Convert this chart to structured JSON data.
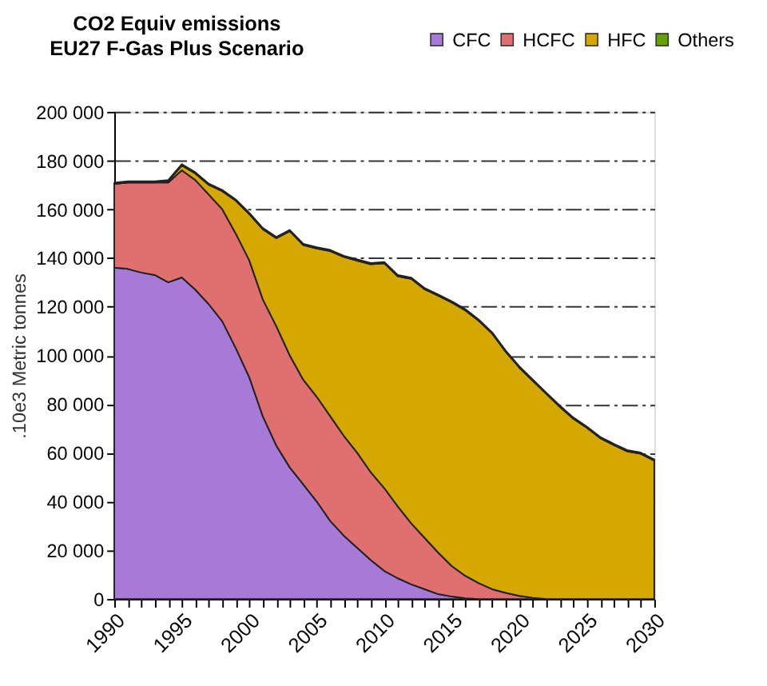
{
  "chart_data": {
    "type": "area",
    "stacked": true,
    "title": "CO2 Equiv emissions\nEU27 F-Gas Plus Scenario",
    "ylabel": ".10e3 Metric tonnes",
    "x": [
      1990,
      1991,
      1992,
      1993,
      1994,
      1995,
      1996,
      1997,
      1998,
      1999,
      2000,
      2001,
      2002,
      2003,
      2004,
      2005,
      2006,
      2007,
      2008,
      2009,
      2010,
      2011,
      2012,
      2013,
      2014,
      2015,
      2016,
      2017,
      2018,
      2019,
      2020,
      2021,
      2022,
      2023,
      2024,
      2025,
      2026,
      2027,
      2028,
      2029,
      2030
    ],
    "series": [
      {
        "name": "CFC",
        "color": "#a87ad8",
        "values": [
          136000,
          135500,
          134000,
          133000,
          130000,
          132000,
          127000,
          121000,
          114000,
          103000,
          91000,
          75000,
          63000,
          54000,
          47000,
          40000,
          32000,
          26000,
          21000,
          16000,
          11500,
          8500,
          6000,
          4000,
          2000,
          1000,
          300,
          0,
          0,
          0,
          0,
          0,
          0,
          0,
          0,
          0,
          0,
          0,
          0,
          0,
          0
        ]
      },
      {
        "name": "HCFC",
        "color": "#e07070",
        "values": [
          34400,
          35500,
          37000,
          38000,
          41000,
          44000,
          45000,
          45000,
          46000,
          47000,
          48000,
          48000,
          49000,
          46000,
          43000,
          43000,
          43000,
          41000,
          39000,
          36000,
          34000,
          29500,
          25000,
          21000,
          17000,
          12500,
          9200,
          6500,
          4000,
          2500,
          1300,
          500,
          0,
          0,
          0,
          0,
          0,
          0,
          0,
          0,
          0
        ]
      },
      {
        "name": "HFC",
        "color": "#d4a800",
        "values": [
          0,
          0,
          0,
          0,
          500,
          2000,
          2700,
          4000,
          7400,
          13500,
          19000,
          28800,
          36100,
          51000,
          55300,
          60900,
          67800,
          73400,
          78900,
          85400,
          92300,
          94500,
          100400,
          102100,
          105500,
          108200,
          109000,
          107700,
          104900,
          98900,
          93700,
          89100,
          84200,
          78900,
          74000,
          70300,
          66000,
          63200,
          60600,
          59600,
          56800
        ]
      },
      {
        "name": "Others",
        "color": "#66a000",
        "values": [
          500,
          500,
          500,
          500,
          500,
          500,
          500,
          500,
          500,
          500,
          500,
          500,
          500,
          500,
          500,
          500,
          500,
          500,
          500,
          500,
          500,
          500,
          500,
          500,
          500,
          500,
          500,
          500,
          500,
          500,
          500,
          500,
          500,
          500,
          500,
          500,
          500,
          500,
          500,
          500,
          500
        ]
      }
    ],
    "xlim": [
      1990,
      2030
    ],
    "xticks": [
      1990,
      {
        "value": 1991,
        "label": null
      },
      {
        "value": 1992,
        "label": null
      },
      {
        "value": 1993,
        "label": null
      },
      {
        "value": 1994,
        "label": null
      },
      1995,
      {
        "value": 1996,
        "label": null
      },
      {
        "value": 1997,
        "label": null
      },
      {
        "value": 1998,
        "label": null
      },
      {
        "value": 1999,
        "label": null
      },
      2000,
      {
        "value": 2001,
        "label": null
      },
      {
        "value": 2002,
        "label": null
      },
      {
        "value": 2003,
        "label": null
      },
      {
        "value": 2004,
        "label": null
      },
      2005,
      {
        "value": 2006,
        "label": null
      },
      {
        "value": 2007,
        "label": null
      },
      {
        "value": 2008,
        "label": null
      },
      {
        "value": 2009,
        "label": null
      },
      2010,
      {
        "value": 2011,
        "label": null
      },
      {
        "value": 2012,
        "label": null
      },
      {
        "value": 2013,
        "label": null
      },
      {
        "value": 2014,
        "label": null
      },
      2015,
      {
        "value": 2016,
        "label": null
      },
      {
        "value": 2017,
        "label": null
      },
      {
        "value": 2018,
        "label": null
      },
      {
        "value": 2019,
        "label": null
      },
      2020,
      {
        "value": 2021,
        "label": null
      },
      {
        "value": 2022,
        "label": null
      },
      {
        "value": 2023,
        "label": null
      },
      {
        "value": 2024,
        "label": null
      },
      2025,
      {
        "value": 2026,
        "label": null
      },
      {
        "value": 2027,
        "label": null
      },
      {
        "value": 2028,
        "label": null
      },
      {
        "value": 2029,
        "label": null
      },
      2030
    ],
    "ylim": [
      0,
      200000
    ],
    "yticks": [
      0,
      {
        "value": 20000,
        "label": "20 000"
      },
      {
        "value": 40000,
        "label": "40 000"
      },
      {
        "value": 60000,
        "label": "60 000"
      },
      {
        "value": 80000,
        "label": "80 000"
      },
      {
        "value": 100000,
        "label": "100 000"
      },
      {
        "value": 120000,
        "label": "120 000"
      },
      {
        "value": 140000,
        "label": "140 000"
      },
      {
        "value": 160000,
        "label": "160 000"
      },
      {
        "value": 180000,
        "label": "180 000"
      },
      {
        "value": 200000,
        "label": "200 000"
      }
    ],
    "grid": "y",
    "legend": "top right"
  }
}
